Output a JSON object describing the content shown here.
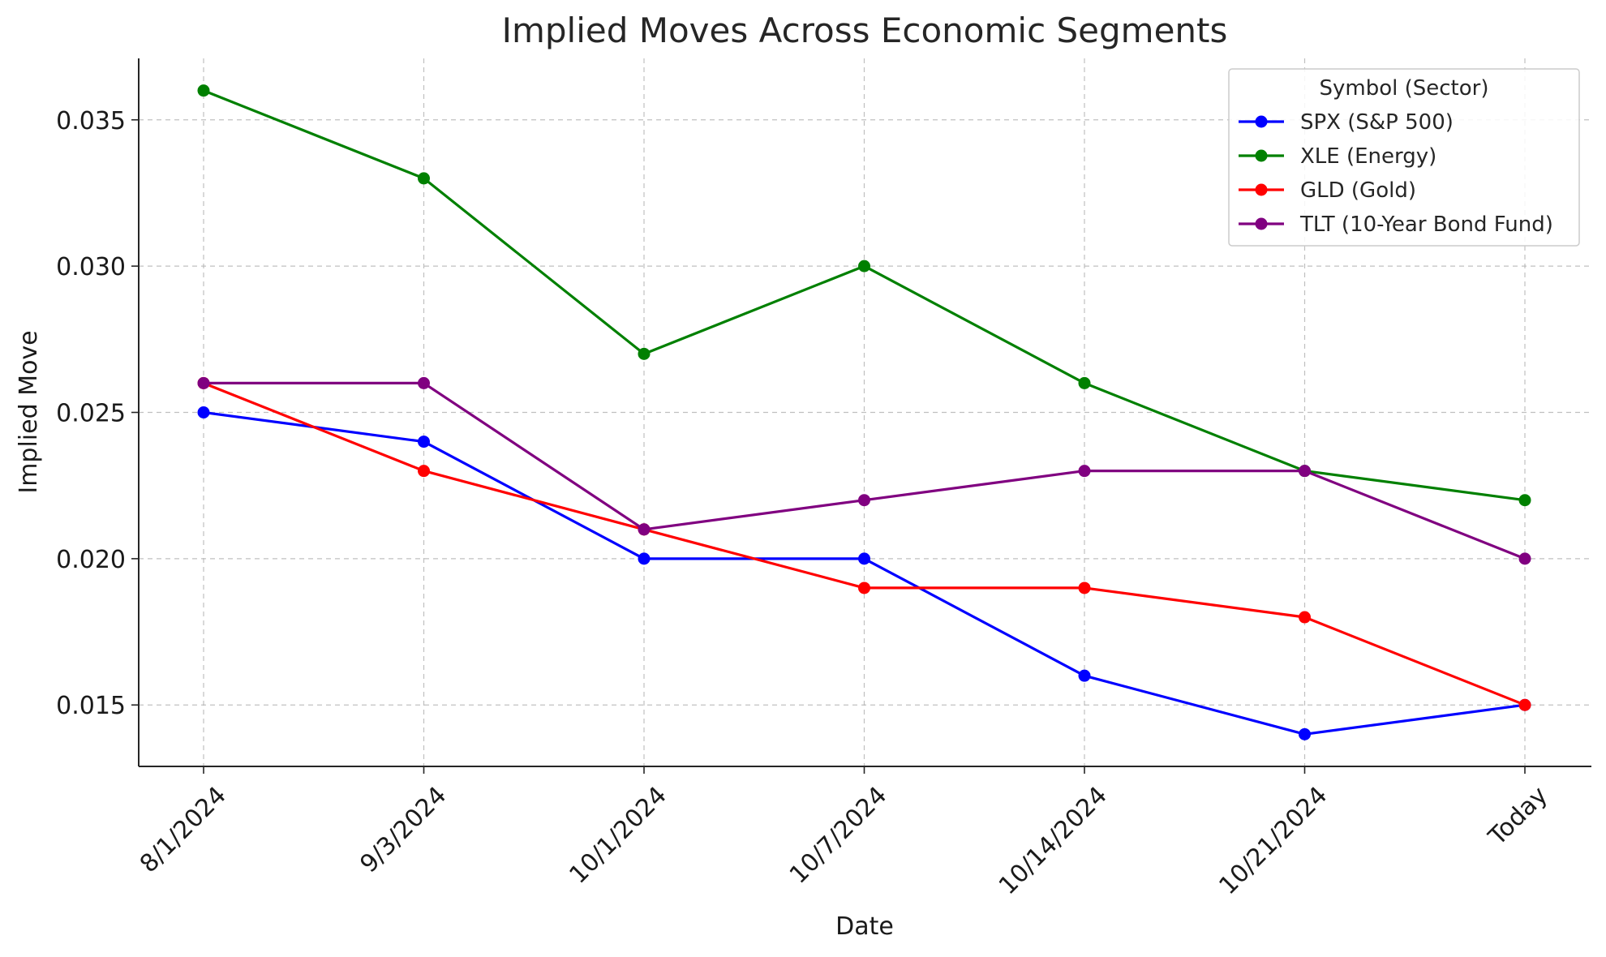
{
  "chart_data": {
    "type": "line",
    "title": "Implied Moves Across Economic Segments",
    "xlabel": "Date",
    "ylabel": "Implied Move",
    "categories": [
      "8/1/2024",
      "9/3/2024",
      "10/1/2024",
      "10/7/2024",
      "10/14/2024",
      "10/21/2024",
      "Today"
    ],
    "ylim": [
      0.0129,
      0.0371
    ],
    "yticks": [
      0.015,
      0.02,
      0.025,
      0.03,
      0.035
    ],
    "ytick_labels": [
      "0.015",
      "0.020",
      "0.025",
      "0.030",
      "0.035"
    ],
    "grid": true,
    "legend": {
      "title": "Symbol (Sector)",
      "position": "top-right"
    },
    "series": [
      {
        "name": "SPX (S&P 500)",
        "color": "#0000ff",
        "values": [
          0.025,
          0.024,
          0.02,
          0.02,
          0.016,
          0.014,
          0.015
        ]
      },
      {
        "name": "XLE (Energy)",
        "color": "#008000",
        "values": [
          0.036,
          0.033,
          0.027,
          0.03,
          0.026,
          0.023,
          0.022
        ]
      },
      {
        "name": "GLD (Gold)",
        "color": "#ff0000",
        "values": [
          0.026,
          0.023,
          0.021,
          0.019,
          0.019,
          0.018,
          0.015
        ]
      },
      {
        "name": "TLT (10-Year Bond Fund)",
        "color": "#800080",
        "values": [
          0.026,
          0.026,
          0.021,
          0.022,
          0.023,
          0.023,
          0.02
        ]
      }
    ]
  }
}
